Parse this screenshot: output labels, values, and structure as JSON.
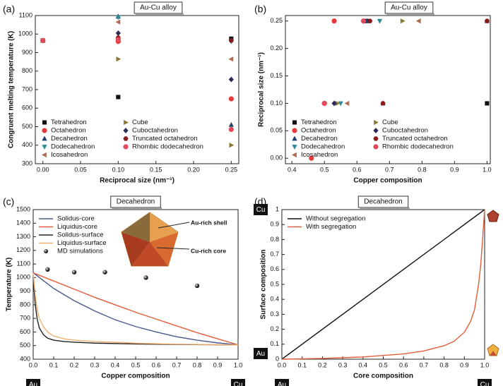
{
  "chart_data": [
    {
      "type": "scatter",
      "panel_label": "(a)",
      "title": "Au-Cu alloy",
      "xlabel": "Reciprocal size (nm⁻¹)",
      "ylabel": "Congruent melting temperature (K)",
      "xlim": [
        -0.01,
        0.26
      ],
      "ylim": [
        300,
        1100
      ],
      "xticks": [
        {
          "value": 0,
          "label": "0.00"
        },
        0.05,
        {
          "value": 0.1,
          "label": "0.10"
        },
        0.15,
        {
          "value": 0.2,
          "label": "0.20"
        },
        0.25
      ],
      "yticks": [
        300,
        400,
        500,
        600,
        700,
        800,
        900,
        1000,
        1100
      ],
      "legend": "lower left",
      "legend_columns": 2,
      "series": [
        {
          "name": "Tetrahedron",
          "color": "#111111",
          "marker": "square",
          "x": [
            0,
            0.1,
            0.25
          ],
          "values": [
            965,
            660,
            975
          ]
        },
        {
          "name": "Octahedron",
          "color": "#e83a3a",
          "marker": "circle",
          "x": [
            0,
            0.1,
            0.25
          ],
          "values": [
            965,
            960,
            650
          ]
        },
        {
          "name": "Decahedron",
          "color": "#1f3f6e",
          "marker": "triangle-up",
          "x": [
            0,
            0.1,
            0.25
          ],
          "values": [
            965,
            1095,
            510
          ]
        },
        {
          "name": "Dodecahedron",
          "color": "#2a8a9a",
          "marker": "triangle-down",
          "x": [
            0,
            0.1,
            0.25
          ],
          "values": [
            965,
            1090,
            960
          ]
        },
        {
          "name": "Icosahedron",
          "color": "#b06a50",
          "marker": "triangle-left",
          "x": [
            0,
            0.1,
            0.25
          ],
          "values": [
            965,
            1065,
            865
          ]
        },
        {
          "name": "Cube",
          "color": "#8a7a30",
          "marker": "triangle-right",
          "x": [
            0,
            0.1,
            0.25
          ],
          "values": [
            965,
            865,
            400
          ]
        },
        {
          "name": "Cuboctahedron",
          "color": "#2a2a5a",
          "marker": "diamond",
          "x": [
            0,
            0.1,
            0.25
          ],
          "values": [
            965,
            1005,
            755
          ]
        },
        {
          "name": "Truncated octahedron",
          "color": "#8a1a1a",
          "marker": "hexagon",
          "x": [
            0,
            0.1,
            0.25
          ],
          "values": [
            965,
            980,
            965
          ]
        },
        {
          "name": "Rhombic dodecahedron",
          "color": "#e04a5a",
          "marker": "circle",
          "x": [
            0,
            0.1,
            0.25
          ],
          "values": [
            965,
            970,
            485
          ]
        }
      ]
    },
    {
      "type": "scatter",
      "panel_label": "(b)",
      "title": "Au-Cu alloy",
      "xlabel": "Copper composition",
      "ylabel": "Reciprocal size (nm⁻¹)",
      "xlim": [
        0.38,
        1.01
      ],
      "ylim": [
        -0.01,
        0.26
      ],
      "xticks": [
        0.4,
        0.5,
        0.6,
        0.7,
        0.8,
        0.9,
        {
          "value": 1,
          "label": "1.0"
        }
      ],
      "yticks": [
        {
          "value": 0,
          "label": "0.00"
        },
        0.05,
        {
          "value": 0.1,
          "label": "0.10"
        },
        0.15,
        {
          "value": 0.2,
          "label": "0.20"
        },
        0.25
      ],
      "legend": "lower left",
      "legend_columns": 2,
      "series": [
        {
          "name": "Tetrahedron",
          "color": "#111111",
          "marker": "square",
          "x": [
            0.63,
            1.0
          ],
          "values": [
            0.25,
            0.1
          ]
        },
        {
          "name": "Octahedron",
          "color": "#e83a3a",
          "marker": "circle",
          "x": [
            0.46,
            0.53,
            0.5
          ],
          "values": [
            0,
            0.25,
            0.1
          ]
        },
        {
          "name": "Decahedron",
          "color": "#1f3f6e",
          "marker": "triangle-up",
          "x": [
            0.63,
            0.68,
            1.0
          ],
          "values": [
            0.25,
            0.1,
            0.25
          ]
        },
        {
          "name": "Dodecahedron",
          "color": "#2a8a9a",
          "marker": "triangle-down",
          "x": [
            0.67,
            0.55
          ],
          "values": [
            0.25,
            0.1
          ]
        },
        {
          "name": "Icosahedron",
          "color": "#b06a50",
          "marker": "triangle-left",
          "x": [
            0.79,
            0.57
          ],
          "values": [
            0.25,
            0.1
          ]
        },
        {
          "name": "Cube",
          "color": "#8a7a30",
          "marker": "triangle-right",
          "x": [
            0.74,
            0.54
          ],
          "values": [
            0.25,
            0.1
          ]
        },
        {
          "name": "Cuboctahedron",
          "color": "#2a2a5a",
          "marker": "diamond",
          "x": [
            0.62,
            0.53
          ],
          "values": [
            0.25,
            0.1
          ]
        },
        {
          "name": "Truncated octahedron",
          "color": "#8a1a1a",
          "marker": "hexagon",
          "x": [
            0.64,
            0.68,
            1.0
          ],
          "values": [
            0.25,
            0.1,
            0.25
          ]
        },
        {
          "name": "Rhombic dodecahedron",
          "color": "#e04a5a",
          "marker": "circle",
          "x": [
            0.62,
            0.5
          ],
          "values": [
            0.25,
            0.1
          ]
        }
      ]
    },
    {
      "type": "line",
      "panel_label": "(c)",
      "title": "Decahedron",
      "xlabel": "Copper composition",
      "ylabel": "Temperature (K)",
      "xlim": [
        0,
        1
      ],
      "ylim": [
        400,
        1500
      ],
      "xticks": [
        {
          "value": 0,
          "label": "0.0"
        },
        0.1,
        0.2,
        0.3,
        0.4,
        0.5,
        0.6,
        0.7,
        0.8,
        0.9,
        {
          "value": 1,
          "label": "1.0"
        }
      ],
      "yticks": [
        400,
        500,
        600,
        700,
        800,
        900,
        1000,
        1100,
        1200,
        1300,
        1400,
        1500
      ],
      "legend": "upper left",
      "legend_columns": 1,
      "x_end_labels": [
        "Au",
        "Cu"
      ],
      "annotations": [
        "Au-rich shell",
        "Cu-rich core"
      ],
      "series": [
        {
          "name": "Solidus-core",
          "color": "#4a5a8a",
          "x": [
            0,
            0.1,
            0.2,
            0.3,
            0.4,
            0.5,
            0.6,
            0.7,
            0.8,
            0.9,
            1.0
          ],
          "values": [
            1035,
            920,
            830,
            755,
            690,
            640,
            600,
            565,
            540,
            520,
            505
          ]
        },
        {
          "name": "Liquidus-core",
          "color": "#e05a3a",
          "x": [
            0,
            0.1,
            0.2,
            0.3,
            0.4,
            0.5,
            0.6,
            0.7,
            0.8,
            0.9,
            1.0
          ],
          "values": [
            1035,
            975,
            915,
            855,
            800,
            745,
            695,
            645,
            595,
            550,
            505
          ]
        },
        {
          "name": "Solidus-surface",
          "color": "#222222",
          "x": [
            0,
            0.01,
            0.02,
            0.03,
            0.05,
            0.07,
            0.1,
            0.15,
            0.2,
            0.3,
            0.5,
            0.7,
            1.0
          ],
          "values": [
            1000,
            800,
            690,
            630,
            580,
            555,
            540,
            530,
            525,
            518,
            512,
            508,
            505
          ]
        },
        {
          "name": "Liquidus-surface",
          "color": "#f0b070",
          "x": [
            0,
            0.01,
            0.02,
            0.03,
            0.05,
            0.07,
            0.1,
            0.15,
            0.2,
            0.3,
            0.5,
            0.7,
            1.0
          ],
          "values": [
            1035,
            870,
            760,
            700,
            640,
            600,
            570,
            550,
            540,
            530,
            518,
            510,
            505
          ]
        },
        {
          "name": "MD simulations",
          "color": "#222222",
          "style": "markers",
          "x": [
            0.07,
            0.2,
            0.35,
            0.55,
            0.8
          ],
          "values": [
            1060,
            1040,
            1040,
            1000,
            940
          ]
        }
      ]
    },
    {
      "type": "line",
      "panel_label": "(d)",
      "title": "Decahedron",
      "xlabel": "Core composition",
      "ylabel": "Surface composition",
      "xlim": [
        0,
        1
      ],
      "ylim": [
        0,
        1
      ],
      "xticks": [
        {
          "value": 0,
          "label": "0.0"
        },
        0.1,
        0.2,
        0.3,
        0.4,
        0.5,
        0.6,
        0.7,
        0.8,
        0.9,
        {
          "value": 1,
          "label": "1.0"
        }
      ],
      "yticks": [
        0,
        0.1,
        0.2,
        0.3,
        0.4,
        0.5,
        0.6,
        0.7,
        0.8,
        0.9,
        1
      ],
      "legend": "upper left",
      "legend_columns": 1,
      "x_end_labels": [
        "Au",
        "Cu"
      ],
      "y_end_labels": [
        "Au",
        "Cu"
      ],
      "series": [
        {
          "name": "Without segregation",
          "color": "#111111",
          "x": [
            0,
            1
          ],
          "values": [
            0,
            1
          ]
        },
        {
          "name": "With segregation",
          "color": "#e0603a",
          "x": [
            0,
            0.2,
            0.4,
            0.5,
            0.6,
            0.7,
            0.8,
            0.85,
            0.9,
            0.93,
            0.95,
            0.97,
            0.98,
            0.99,
            1.0
          ],
          "values": [
            0,
            0.005,
            0.015,
            0.025,
            0.035,
            0.055,
            0.09,
            0.12,
            0.18,
            0.25,
            0.33,
            0.5,
            0.62,
            0.8,
            1.0
          ]
        }
      ]
    }
  ]
}
